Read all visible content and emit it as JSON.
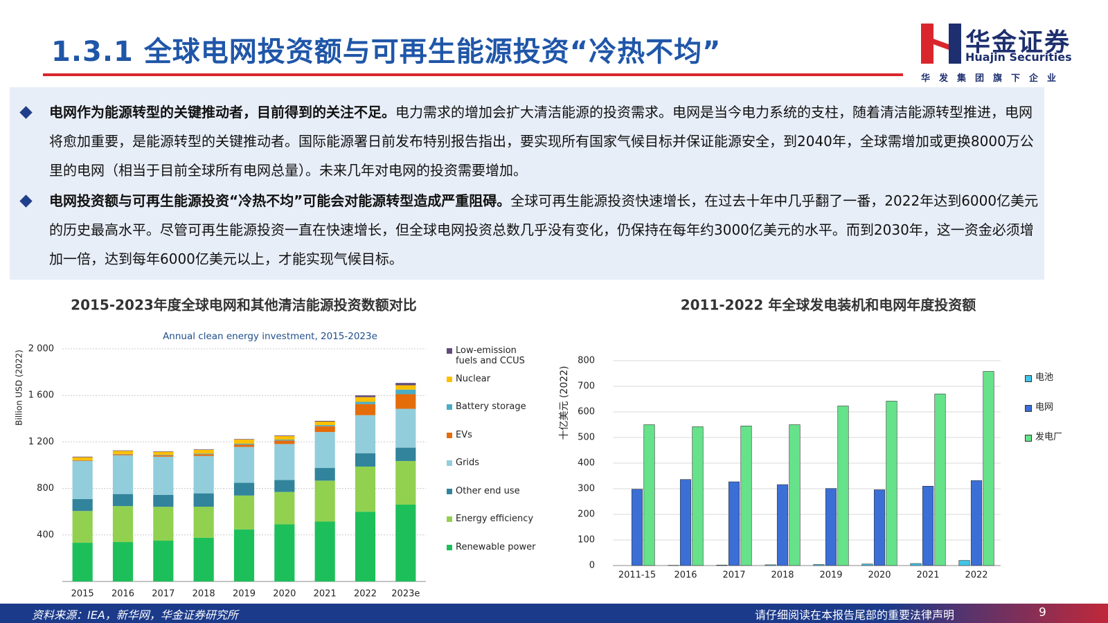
{
  "header": {
    "title": "1.3.1 全球电网投资额与可再生能源投资“冷热不均”",
    "logo_name": "华金证券",
    "logo_en": "Huajin Securities",
    "logo_tagline": "华发集团旗下企业"
  },
  "bullets": [
    {
      "bold": "电网作为能源转型的关键推动者，目前得到的关注不足。",
      "text": "电力需求的增加会扩大清洁能源的投资需求。电网是当今电力系统的支柱，随着清洁能源转型推进，电网将愈加重要，是能源转型的关键推动者。国际能源署日前发布特别报告指出，要实现所有国家气候目标并保证能源安全，到2040年，全球需增加或更换8000万公里的电网（相当于目前全球所有电网总量）。未来几年对电网的投资需要增加。"
    },
    {
      "bold": "电网投资额与可再生能源投资“冷热不均”可能会对能源转型造成严重阻碍。",
      "text": "全球可再生能源投资快速增长，在过去十年中几乎翻了一番，2022年达到6000亿美元的历史最高水平。尽管可再生能源投资一直在快速增长，但全球电网投资总数几乎没有变化，仍保持在每年约3000亿美元的水平。而到2030年，这一资金必须增加一倍，达到每年6000亿美元以上，才能实现气候目标。"
    }
  ],
  "chart_data": [
    {
      "type": "bar",
      "stacked": true,
      "title": "2015-2023年度全球电网和其他清洁能源投资数额对比",
      "subtitle": "Annual clean energy investment, 2015-2023e",
      "y_label": "Billion USD (2022)",
      "categories": [
        "2015",
        "2016",
        "2017",
        "2018",
        "2019",
        "2020",
        "2021",
        "2022",
        "2023e"
      ],
      "series": [
        {
          "name": "Renewable power",
          "color": "#1dbf5a",
          "values": [
            333,
            339,
            351,
            376,
            448,
            491,
            515,
            600,
            661
          ]
        },
        {
          "name": "Energy efficiency",
          "color": "#92d050",
          "values": [
            273,
            309,
            291,
            267,
            291,
            279,
            352,
            388,
            375
          ]
        },
        {
          "name": "Other end use",
          "color": "#31849b",
          "values": [
            103,
            104,
            103,
            115,
            109,
            103,
            109,
            115,
            115
          ]
        },
        {
          "name": "Grids",
          "color": "#92cddc",
          "values": [
            327,
            333,
            328,
            321,
            309,
            309,
            309,
            327,
            334
          ]
        },
        {
          "name": "EVs",
          "color": "#e46c0a",
          "values": [
            5,
            8,
            12,
            15,
            20,
            30,
            50,
            95,
            125
          ]
        },
        {
          "name": "Battery storage",
          "color": "#4bacc6",
          "values": [
            2,
            3,
            4,
            6,
            8,
            8,
            10,
            20,
            40
          ]
        },
        {
          "name": "Nuclear",
          "color": "#ffc000",
          "values": [
            25,
            27,
            26,
            31,
            36,
            30,
            30,
            40,
            37
          ]
        },
        {
          "name": "Low-emission fuels and CCUS",
          "color": "#604a7b",
          "values": [
            5,
            4,
            4,
            4,
            4,
            5,
            6,
            15,
            20
          ]
        }
      ],
      "ylim": [
        0,
        2000
      ],
      "yticks": [
        400,
        800,
        {
          "value": 1200,
          "label": "1 200"
        },
        {
          "value": 1600,
          "label": "1 600"
        },
        {
          "value": 2000,
          "label": "2 000"
        }
      ],
      "grid": true
    },
    {
      "type": "bar",
      "stacked": false,
      "title": "2011-2022 年全球发电装机和电网年度投资额",
      "y_label": "十亿美元 (2022)",
      "categories": [
        "2011-15",
        "2016",
        "2017",
        "2018",
        "2019",
        "2020",
        "2021",
        "2022"
      ],
      "series": [
        {
          "name": "电池",
          "color": "#41c4e6",
          "values": [
            0,
            1,
            2,
            3,
            4,
            6,
            8,
            20
          ]
        },
        {
          "name": "电网",
          "color": "#3b6fd6",
          "values": [
            298,
            336,
            327,
            316,
            301,
            296,
            310,
            332
          ]
        },
        {
          "name": "发电厂",
          "color": "#66e28a",
          "values": [
            550,
            542,
            545,
            550,
            623,
            642,
            670,
            758
          ]
        }
      ],
      "ylim": [
        0,
        800
      ],
      "yticks": [
        0,
        100,
        200,
        300,
        400,
        500,
        600,
        700,
        800
      ],
      "grid": true
    }
  ],
  "footer": {
    "source": "资料来源：IEA，新华网，华金证券研究所",
    "notice": "请仔细阅读在本报告尾部的重要法律声明",
    "page": 9
  }
}
